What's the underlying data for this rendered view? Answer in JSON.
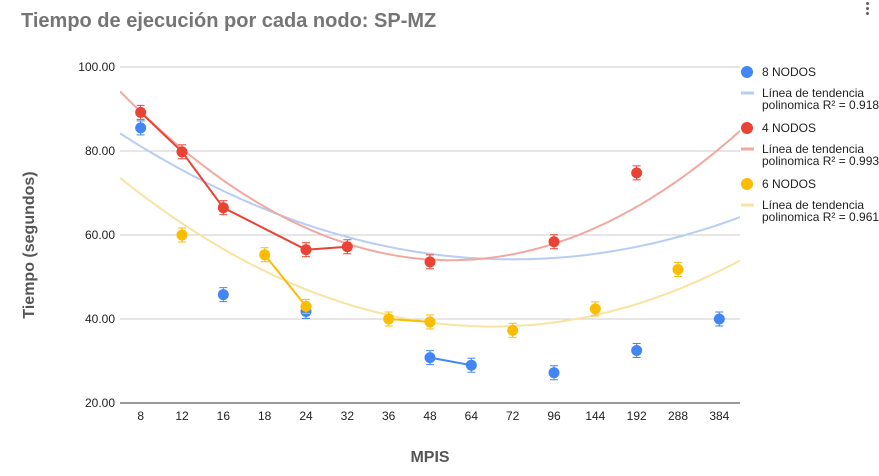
{
  "title": "Tiempo de ejecución por cada nodo: SP-MZ",
  "menu_icon": "more-vert-icon",
  "chart_data": {
    "type": "scatter",
    "title": "Tiempo de ejecución por cada nodo: SP-MZ",
    "xlabel": "MPIS",
    "ylabel": "Tiempo (segundos)",
    "categories": [
      "8",
      "12",
      "16",
      "18",
      "24",
      "32",
      "36",
      "48",
      "64",
      "72",
      "96",
      "144",
      "192",
      "288",
      "384"
    ],
    "ylim": [
      20,
      100
    ],
    "yticks": [
      "20.00",
      "40.00",
      "60.00",
      "80.00",
      "100.00"
    ],
    "grid": true,
    "legend_position": "right",
    "series": [
      {
        "name": "8 NODOS",
        "color": "#4285f4",
        "trend_color": "#b7cdf3",
        "trend_label": [
          "Línea de tendencia",
          "polinomica R² = 0.918"
        ],
        "points": [
          {
            "x": "8",
            "y": 85.5
          },
          {
            "x": "16",
            "y": 45.8
          },
          {
            "x": "24",
            "y": 41.8
          },
          {
            "x": "48",
            "y": 30.8
          },
          {
            "x": "64",
            "y": 29.0
          },
          {
            "x": "96",
            "y": 27.2
          },
          {
            "x": "192",
            "y": 32.5
          },
          {
            "x": "384",
            "y": 40.0
          }
        ],
        "connected": [
          [
            "48",
            "64"
          ]
        ],
        "trend": [
          -0.1,
          84.2,
          54.2,
          9.0
        ]
      },
      {
        "name": "4 NODOS",
        "color": "#ea4335",
        "trend_color": "#f2a8a1",
        "trend_label": [
          "Línea de tendencia",
          "polinomica R² = 0.993"
        ],
        "points": [
          {
            "x": "8",
            "y": 89.2
          },
          {
            "x": "12",
            "y": 79.8
          },
          {
            "x": "16",
            "y": 66.5
          },
          {
            "x": "24",
            "y": 56.5
          },
          {
            "x": "32",
            "y": 57.2
          },
          {
            "x": "48",
            "y": 53.6
          },
          {
            "x": "96",
            "y": 58.4
          },
          {
            "x": "192",
            "y": 74.8
          }
        ],
        "connected": [
          [
            "8",
            "12",
            "16",
            "24",
            "32"
          ]
        ],
        "trend": [
          -0.1,
          94.2,
          54.0,
          7.5
        ]
      },
      {
        "name": "6 NODOS",
        "color": "#fbbc04",
        "trend_color": "#f8e3a0",
        "trend_label": [
          "Línea de tendencia",
          "polinomica R² = 0.961"
        ],
        "points": [
          {
            "x": "12",
            "y": 60.0
          },
          {
            "x": "18",
            "y": 55.3
          },
          {
            "x": "24",
            "y": 43.0
          },
          {
            "x": "36",
            "y": 40.0
          },
          {
            "x": "48",
            "y": 39.3
          },
          {
            "x": "72",
            "y": 37.3
          },
          {
            "x": "144",
            "y": 42.4
          },
          {
            "x": "288",
            "y": 51.8
          }
        ],
        "connected": [
          [
            "18",
            "24"
          ],
          [
            "36",
            "48"
          ]
        ],
        "trend": [
          -0.1,
          73.6,
          38.2,
          8.5
        ]
      }
    ]
  }
}
